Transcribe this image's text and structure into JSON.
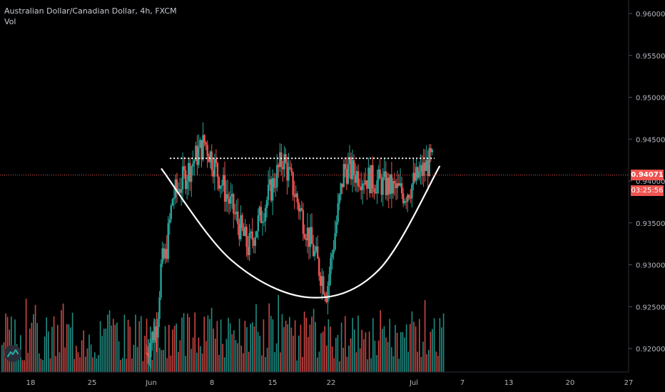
{
  "header": {
    "title": "Australian Dollar/Canadian Dollar, 4h, FXCM",
    "indicator": "Vol"
  },
  "current_price": {
    "label": "0.94071",
    "countdown": "03:25:56"
  },
  "colors": {
    "up": "#26a69a",
    "down": "#ef5350",
    "pattern": "#ffffff",
    "price_line": "#ef5350",
    "text": "#b2b5be"
  },
  "icons": {
    "logo": "tradingview-logo-icon"
  },
  "chart_data": {
    "type": "candlestick",
    "title": "Australian Dollar/Canadian Dollar, 4h, FXCM",
    "y_axis": {
      "ticks": [
        "0.96000",
        "0.95500",
        "0.95000",
        "0.94500",
        "0.94000",
        "0.93500",
        "0.93000",
        "0.92500",
        "0.92000"
      ],
      "ylim": [
        0.9175,
        0.9615
      ],
      "side": "right"
    },
    "x_axis": {
      "ticks": [
        "18",
        "25",
        "Jun",
        "8",
        "15",
        "22",
        "Jul",
        "7",
        "13",
        "20",
        "27"
      ]
    },
    "current_price": 0.94071,
    "resistance_level": 0.94271,
    "rounded_bottom": [
      {
        "date": "Jun 2",
        "price": 0.9415
      },
      {
        "date": "Jun 10",
        "price": 0.9306
      },
      {
        "date": "Jun 19",
        "price": 0.9261
      },
      {
        "date": "Jun 27",
        "price": 0.9294
      },
      {
        "date": "Jul 4",
        "price": 0.9418
      }
    ],
    "key_prices": [
      {
        "date": "Jun 2",
        "close": 0.93
      },
      {
        "date": "Jun 7",
        "high": 0.9447
      },
      {
        "date": "Jun 12",
        "close": 0.932
      },
      {
        "date": "Jun 16",
        "high": 0.9428
      },
      {
        "date": "Jun 21",
        "low": 0.9268
      },
      {
        "date": "Jun 23",
        "high": 0.9415
      },
      {
        "date": "Jun 30",
        "close": 0.9385
      },
      {
        "date": "Jul 3",
        "high": 0.9425
      },
      {
        "date": "Jul 4",
        "close": 0.9407
      }
    ],
    "series": [
      {
        "name": "Vol",
        "type": "bar",
        "values": "histogram"
      }
    ]
  }
}
